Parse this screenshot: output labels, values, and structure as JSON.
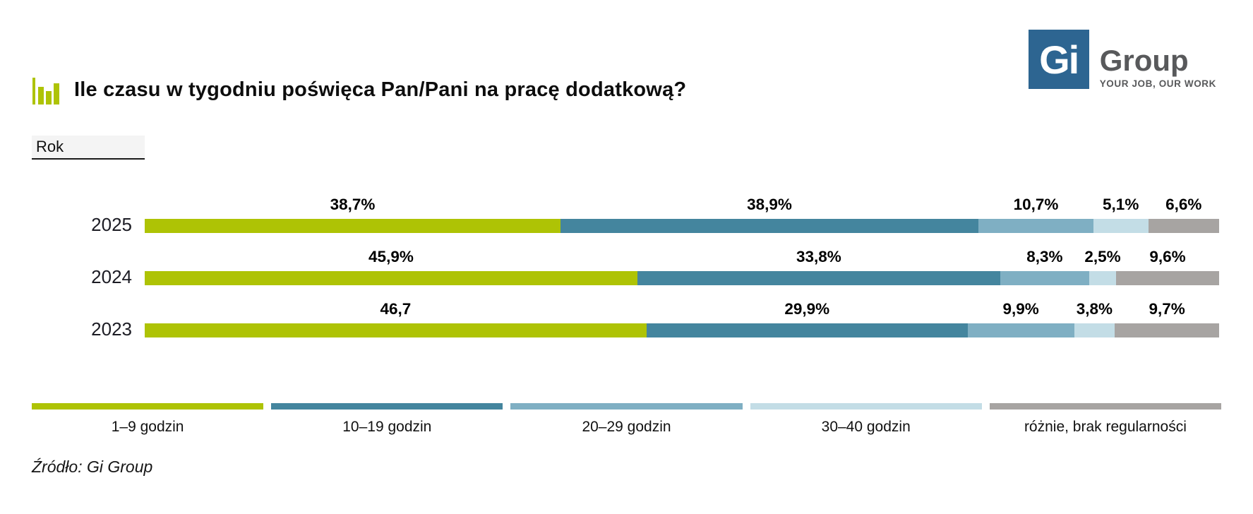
{
  "logo": {
    "square_text": "Gi",
    "name": "Group",
    "tagline": "YOUR JOB, OUR WORK",
    "square_color": "#2D6591",
    "text_color": "#58595B"
  },
  "title": "Ile czasu w tygodniu poświęca Pan/Pani na pracę dodatkową?",
  "axis_label": "Rok",
  "source": "Źródło: Gi Group",
  "icons": {
    "title_icon": "bar-chart-icon",
    "title_icon_color": "#AEC305"
  },
  "chart_data": {
    "type": "bar",
    "orientation": "horizontal-stacked",
    "categories": [
      "2025",
      "2024",
      "2023"
    ],
    "series": [
      {
        "name": "1–9 godzin",
        "color": "#AEC305",
        "values": [
          38.7,
          45.9,
          46.7
        ]
      },
      {
        "name": "10–19 godzin",
        "color": "#44859E",
        "values": [
          38.9,
          33.8,
          29.9
        ]
      },
      {
        "name": "20–29 godzin",
        "color": "#7FAFC3",
        "values": [
          10.7,
          8.3,
          9.9
        ]
      },
      {
        "name": "30–40 godzin",
        "color": "#C3DDE6",
        "values": [
          5.1,
          2.5,
          3.8
        ]
      },
      {
        "name": "różnie, brak regularności",
        "color": "#A7A4A2",
        "values": [
          6.6,
          9.6,
          9.7
        ]
      }
    ],
    "value_labels": [
      [
        "38,7%",
        "38,9%",
        "10,7%",
        "5,1%",
        "6,6%"
      ],
      [
        "45,9%",
        "33,8%",
        "8,3%",
        "2,5%",
        "9,6%"
      ],
      [
        "46,7",
        "29,9%",
        "9,9%",
        "3,8%",
        "9,7%"
      ]
    ],
    "xlim": [
      0,
      100
    ],
    "grid": false,
    "legend_position": "bottom"
  }
}
